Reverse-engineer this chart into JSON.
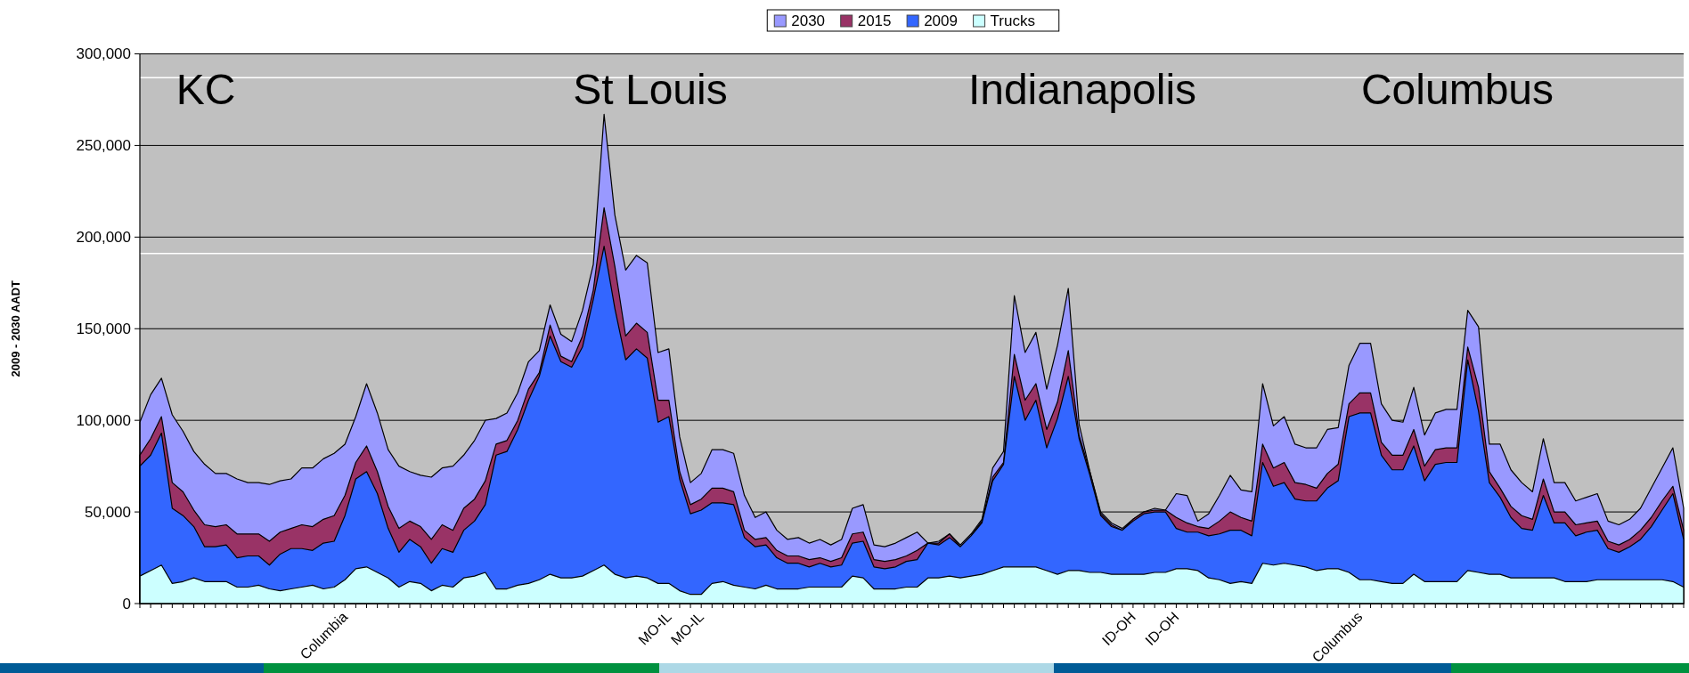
{
  "chart_data": {
    "type": "area",
    "ylabel": "2009 - 2030 AADT",
    "legend": "top",
    "grid": "y",
    "annotations": [
      "KC",
      "St Louis",
      "Indianapolis",
      "Columbus"
    ],
    "ylim": [
      0,
      300000
    ],
    "yticks": [
      0,
      {
        "value": 50000,
        "label": "50,000"
      },
      {
        "value": 100000,
        "label": "100,000"
      },
      {
        "value": 150000,
        "label": "150,000"
      },
      {
        "value": 200000,
        "label": "200,000"
      },
      {
        "value": 250000,
        "label": "250,000"
      },
      {
        "value": 300000,
        "label": "300,000"
      }
    ],
    "ref_lines": [
      {
        "axis": "y",
        "value": 287000,
        "color": "#ffffff"
      },
      {
        "axis": "y",
        "value": 191000,
        "color": "#ffffff"
      }
    ],
    "categories": [
      null,
      null,
      null,
      null,
      null,
      null,
      null,
      null,
      null,
      null,
      null,
      null,
      null,
      null,
      null,
      null,
      null,
      null,
      null,
      "Columbia",
      null,
      null,
      null,
      null,
      null,
      null,
      null,
      null,
      null,
      null,
      null,
      null,
      null,
      null,
      null,
      null,
      null,
      null,
      null,
      null,
      null,
      null,
      null,
      null,
      null,
      null,
      null,
      null,
      null,
      "MO-IL",
      null,
      null,
      "MO-IL",
      null,
      null,
      null,
      null,
      null,
      null,
      null,
      null,
      null,
      null,
      null,
      null,
      null,
      null,
      null,
      null,
      null,
      null,
      null,
      null,
      null,
      null,
      null,
      null,
      null,
      null,
      null,
      null,
      null,
      null,
      null,
      null,
      null,
      null,
      null,
      null,
      null,
      null,
      null,
      "ID-OH",
      null,
      null,
      null,
      "ID-OH",
      null,
      null,
      null,
      null,
      null,
      null,
      null,
      null,
      null,
      null,
      null,
      null,
      null,
      null,
      null,
      null,
      "Columbus",
      null,
      null,
      null,
      null,
      null,
      null,
      null,
      null,
      null,
      null,
      null,
      null,
      null,
      null,
      null,
      null,
      null,
      null,
      null,
      null,
      null,
      null,
      null,
      null,
      null,
      null,
      null,
      null,
      null,
      null
    ],
    "series": [
      {
        "name": "2030",
        "color": "#9999ff",
        "values": [
          99000,
          114000,
          123000,
          103000,
          94000,
          83000,
          76000,
          71000,
          71000,
          68000,
          66000,
          66000,
          65000,
          67000,
          68000,
          74000,
          74000,
          79000,
          82000,
          87000,
          102000,
          120000,
          104000,
          84000,
          75000,
          72000,
          70000,
          69000,
          74000,
          75000,
          81000,
          89000,
          100000,
          101000,
          104000,
          115000,
          132000,
          138000,
          163000,
          147000,
          143000,
          160000,
          185000,
          267000,
          212000,
          182000,
          190000,
          186000,
          137000,
          139000,
          91000,
          66000,
          71000,
          84000,
          84000,
          82000,
          59000,
          47000,
          50000,
          40000,
          35000,
          36000,
          33000,
          35000,
          32000,
          35000,
          52000,
          54000,
          32000,
          31000,
          33000,
          36000,
          39000,
          33000,
          34000,
          38000,
          32000,
          38000,
          46000,
          74000,
          83000,
          168000,
          137000,
          148000,
          117000,
          141000,
          172000,
          98000,
          72000,
          50000,
          44000,
          41000,
          46000,
          50000,
          52000,
          51000,
          60000,
          59000,
          45000,
          49000,
          59000,
          70000,
          62000,
          61000,
          120000,
          97000,
          102000,
          87000,
          85000,
          85000,
          95000,
          96000,
          130000,
          142000,
          142000,
          109000,
          100000,
          99000,
          118000,
          92000,
          104000,
          106000,
          106000,
          160000,
          151000,
          87000,
          87000,
          73000,
          66000,
          61000,
          90000,
          66000,
          66000,
          56000,
          58000,
          60000,
          45000,
          43000,
          46000,
          52000,
          63000,
          74000,
          85000,
          52000
        ]
      },
      {
        "name": "2015",
        "color": "#993366",
        "values": [
          81000,
          90000,
          102000,
          66000,
          61000,
          51000,
          43000,
          42000,
          43000,
          38000,
          38000,
          38000,
          34000,
          39000,
          41000,
          43000,
          42000,
          46000,
          48000,
          59000,
          77000,
          86000,
          72000,
          53000,
          41000,
          45000,
          42000,
          35000,
          43000,
          40000,
          52000,
          57000,
          67000,
          87000,
          89000,
          100000,
          117000,
          126000,
          152000,
          135000,
          132000,
          146000,
          171000,
          216000,
          184000,
          146000,
          153000,
          148000,
          111000,
          111000,
          72000,
          54000,
          57000,
          63000,
          63000,
          61000,
          40000,
          35000,
          36000,
          29000,
          26000,
          26000,
          24000,
          25000,
          23000,
          25000,
          38000,
          39000,
          24000,
          23000,
          24000,
          26000,
          29000,
          33000,
          33000,
          38000,
          31000,
          37000,
          45000,
          69000,
          77000,
          136000,
          111000,
          120000,
          95000,
          110000,
          138000,
          92000,
          72000,
          49000,
          43000,
          40000,
          46000,
          50000,
          51000,
          51000,
          47000,
          44000,
          42000,
          41000,
          45000,
          50000,
          47000,
          45000,
          87000,
          74000,
          77000,
          66000,
          65000,
          63000,
          71000,
          76000,
          109000,
          115000,
          115000,
          88000,
          81000,
          81000,
          95000,
          75000,
          84000,
          85000,
          85000,
          140000,
          118000,
          72000,
          63000,
          53000,
          48000,
          46000,
          68000,
          50000,
          50000,
          43000,
          44000,
          45000,
          34000,
          32000,
          35000,
          40000,
          47000,
          56000,
          64000,
          40000
        ]
      },
      {
        "name": "2009",
        "color": "#3366ff",
        "values": [
          75000,
          81000,
          93000,
          52000,
          48000,
          42000,
          31000,
          31000,
          32000,
          25000,
          26000,
          26000,
          21000,
          27000,
          30000,
          30000,
          29000,
          33000,
          34000,
          48000,
          68000,
          72000,
          60000,
          41000,
          28000,
          35000,
          31000,
          22000,
          30000,
          28000,
          40000,
          45000,
          54000,
          81000,
          83000,
          95000,
          111000,
          124000,
          146000,
          132000,
          129000,
          140000,
          166000,
          195000,
          161000,
          133000,
          139000,
          134000,
          99000,
          102000,
          68000,
          49000,
          51000,
          55000,
          55000,
          54000,
          36000,
          31000,
          32000,
          25000,
          22000,
          22000,
          20000,
          22000,
          20000,
          21000,
          33000,
          34000,
          20000,
          19000,
          20000,
          23000,
          24000,
          33000,
          32000,
          36000,
          31000,
          37000,
          44000,
          67000,
          76000,
          124000,
          100000,
          111000,
          85000,
          101000,
          124000,
          90000,
          70000,
          48000,
          42000,
          40000,
          45000,
          49000,
          50000,
          50000,
          41000,
          39000,
          39000,
          37000,
          38000,
          40000,
          40000,
          37000,
          77000,
          64000,
          66000,
          57000,
          56000,
          56000,
          63000,
          67000,
          102000,
          104000,
          104000,
          81000,
          73000,
          73000,
          86000,
          67000,
          76000,
          77000,
          77000,
          133000,
          105000,
          66000,
          58000,
          47000,
          41000,
          40000,
          59000,
          44000,
          44000,
          37000,
          39000,
          40000,
          30000,
          28000,
          31000,
          35000,
          42000,
          51000,
          60000,
          35000
        ]
      },
      {
        "name": "Trucks",
        "color": "#ccffff",
        "values": [
          15000,
          18000,
          21000,
          11000,
          12000,
          14000,
          12000,
          12000,
          12000,
          9000,
          9000,
          10000,
          8000,
          7000,
          8000,
          9000,
          10000,
          8000,
          9000,
          13000,
          19000,
          20000,
          17000,
          14000,
          9000,
          12000,
          11000,
          7000,
          10000,
          9000,
          14000,
          15000,
          17000,
          8000,
          8000,
          10000,
          11000,
          13000,
          16000,
          14000,
          14000,
          15000,
          18000,
          21000,
          16000,
          14000,
          15000,
          14000,
          11000,
          11000,
          7000,
          5000,
          5000,
          11000,
          12000,
          10000,
          9000,
          8000,
          10000,
          8000,
          8000,
          8000,
          9000,
          9000,
          9000,
          9000,
          15000,
          14000,
          8000,
          8000,
          8000,
          9000,
          9000,
          14000,
          14000,
          15000,
          14000,
          15000,
          16000,
          18000,
          20000,
          20000,
          20000,
          20000,
          18000,
          16000,
          18000,
          18000,
          17000,
          17000,
          16000,
          16000,
          16000,
          16000,
          17000,
          17000,
          19000,
          19000,
          18000,
          14000,
          13000,
          11000,
          12000,
          11000,
          22000,
          21000,
          22000,
          21000,
          20000,
          18000,
          19000,
          19000,
          17000,
          13000,
          13000,
          12000,
          11000,
          11000,
          16000,
          12000,
          12000,
          12000,
          12000,
          18000,
          17000,
          16000,
          16000,
          14000,
          14000,
          14000,
          14000,
          14000,
          12000,
          12000,
          12000,
          13000,
          13000,
          13000,
          13000,
          13000,
          13000,
          13000,
          12000,
          9000
        ]
      }
    ]
  }
}
